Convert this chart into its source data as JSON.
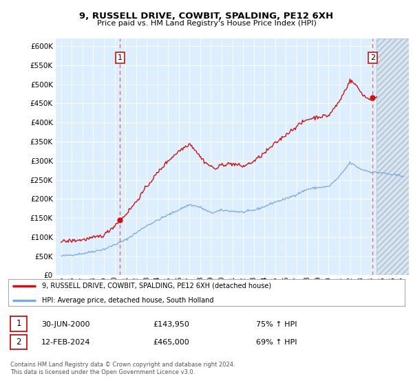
{
  "title": "9, RUSSELL DRIVE, COWBIT, SPALDING, PE12 6XH",
  "subtitle": "Price paid vs. HM Land Registry's House Price Index (HPI)",
  "legend_line1": "9, RUSSELL DRIVE, COWBIT, SPALDING, PE12 6XH (detached house)",
  "legend_line2": "HPI: Average price, detached house, South Holland",
  "annotation1_date": "30-JUN-2000",
  "annotation1_price": "£143,950",
  "annotation1_hpi": "75% ↑ HPI",
  "annotation2_date": "12-FEB-2024",
  "annotation2_price": "£465,000",
  "annotation2_hpi": "69% ↑ HPI",
  "footer": "Contains HM Land Registry data © Crown copyright and database right 2024.\nThis data is licensed under the Open Government Licence v3.0.",
  "hpi_color": "#7aaadd",
  "price_color": "#cc1111",
  "marker_color": "#cc1111",
  "annotation_box_color": "#cc1111",
  "dashed_line_color": "#ee6666",
  "bg_color": "#ddeeff",
  "ylim_min": 0,
  "ylim_max": 620000,
  "yticks": [
    0,
    50000,
    100000,
    150000,
    200000,
    250000,
    300000,
    350000,
    400000,
    450000,
    500000,
    550000,
    600000
  ],
  "sale1_x": 2000.5,
  "sale1_y": 143950,
  "sale2_x": 2024.12,
  "sale2_y": 465000,
  "xlim_min": 1994.5,
  "xlim_max": 2027.5,
  "hatch_start": 2024.5
}
